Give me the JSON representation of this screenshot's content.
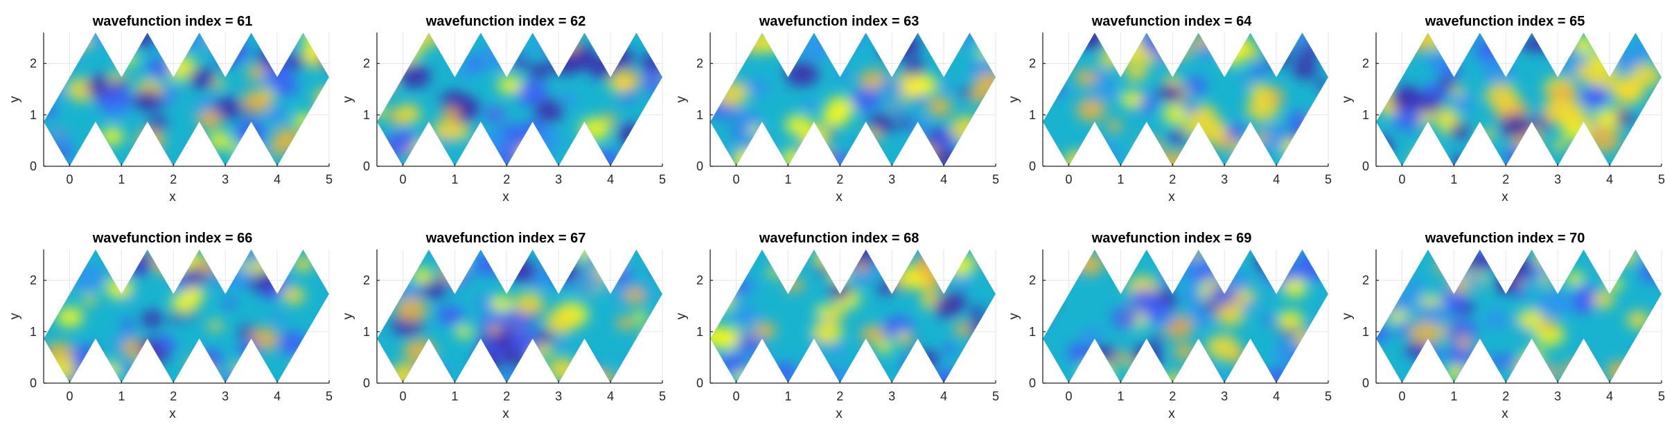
{
  "chart_data": {
    "type": "heatmap",
    "layout": {
      "rows": 2,
      "cols": 5
    },
    "title_prefix": "wavefunction index = ",
    "xlabel": "x",
    "ylabel": "y",
    "xlim": [
      -0.5,
      5
    ],
    "ylim": [
      0,
      2.6
    ],
    "xticks": [
      0,
      1,
      2,
      3,
      4,
      5
    ],
    "yticks": [
      0,
      1,
      2
    ],
    "grid": true,
    "colormap": "parula",
    "colors": [
      "#3e26a8",
      "#3f5bf8",
      "#2d92f0",
      "#19b3d0",
      "#3ec193",
      "#9bc83a",
      "#f1b43a",
      "#f9dd2a",
      "#f9fb15"
    ],
    "domain": "zigzag strip: five rhombi of width 1 joined along x from x=-0.5 to x=5, with triangular notches along the top and bottom edges",
    "panels": [
      {
        "index": "61",
        "title": "wavefunction index = 61"
      },
      {
        "index": "62",
        "title": "wavefunction index = 62"
      },
      {
        "index": "63",
        "title": "wavefunction index = 63"
      },
      {
        "index": "64",
        "title": "wavefunction index = 64"
      },
      {
        "index": "65",
        "title": "wavefunction index = 65"
      },
      {
        "index": "66",
        "title": "wavefunction index = 66"
      },
      {
        "index": "67",
        "title": "wavefunction index = 67"
      },
      {
        "index": "68",
        "title": "wavefunction index = 68"
      },
      {
        "index": "69",
        "title": "wavefunction index = 69"
      },
      {
        "index": "70",
        "title": "wavefunction index = 70"
      }
    ]
  }
}
